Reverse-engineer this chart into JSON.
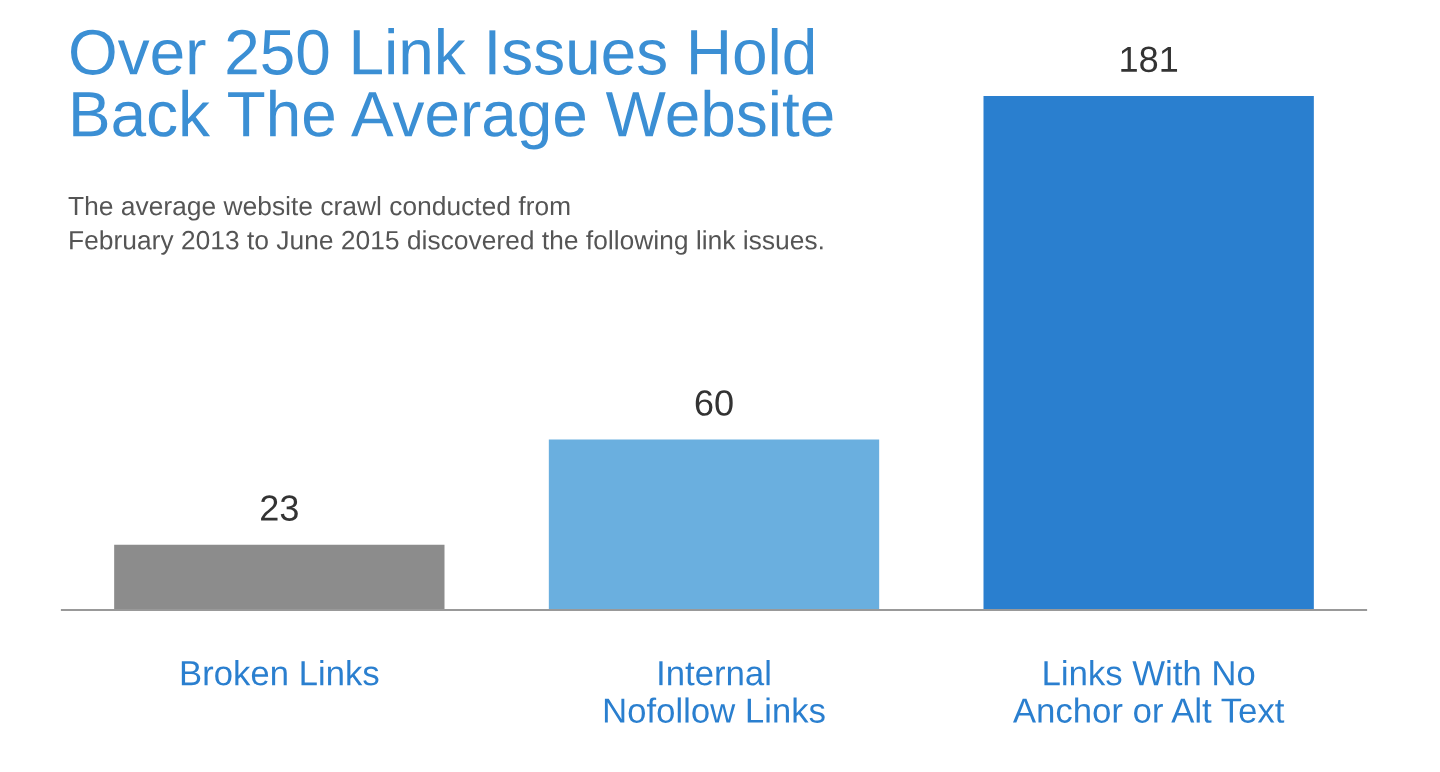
{
  "chart_data": {
    "type": "bar",
    "title": "Over 250 Link Issues Hold\nBack The Average Website",
    "subtitle": "The average website crawl conducted from\nFebruary 2013 to June 2015 discovered the following link issues.",
    "categories": [
      "Broken Links",
      "Internal\nNofollow Links",
      "Links With No\nAnchor or Alt Text"
    ],
    "values": [
      23,
      60,
      181
    ],
    "colors": [
      "#8c8c8c",
      "#6aafdf",
      "#2a7fcf"
    ],
    "data_labels": true,
    "grid": false,
    "legend": false
  }
}
